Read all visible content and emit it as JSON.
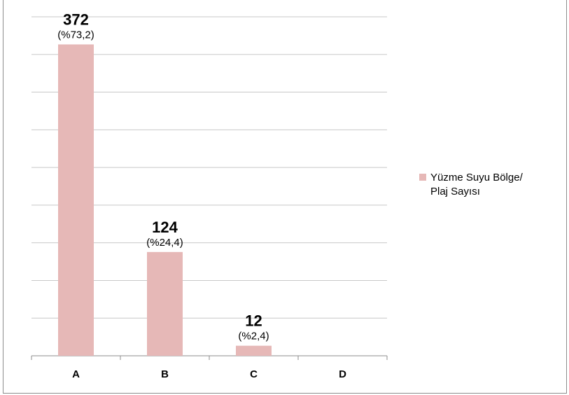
{
  "chart_data": {
    "type": "bar",
    "categories": [
      "A",
      "B",
      "C",
      "D"
    ],
    "series": [
      {
        "name": "Yüzme Suyu Bölge/ Plaj Sayısı",
        "values": [
          372,
          124,
          12,
          0
        ],
        "pct_labels": [
          "(%73,2)",
          "(%24,4)",
          "(%2,4)",
          ""
        ],
        "value_labels": [
          "372",
          "124",
          "12",
          ""
        ]
      }
    ],
    "ylim": [
      0,
      405
    ],
    "grid_step": 45,
    "grid": true,
    "legend_position": "right",
    "bar_color": "#e6b8b7",
    "grid_color": "#c8c8c8"
  },
  "legend": {
    "line1": "Yüzme Suyu Bölge/",
    "line2": "Plaj Sayısı"
  }
}
